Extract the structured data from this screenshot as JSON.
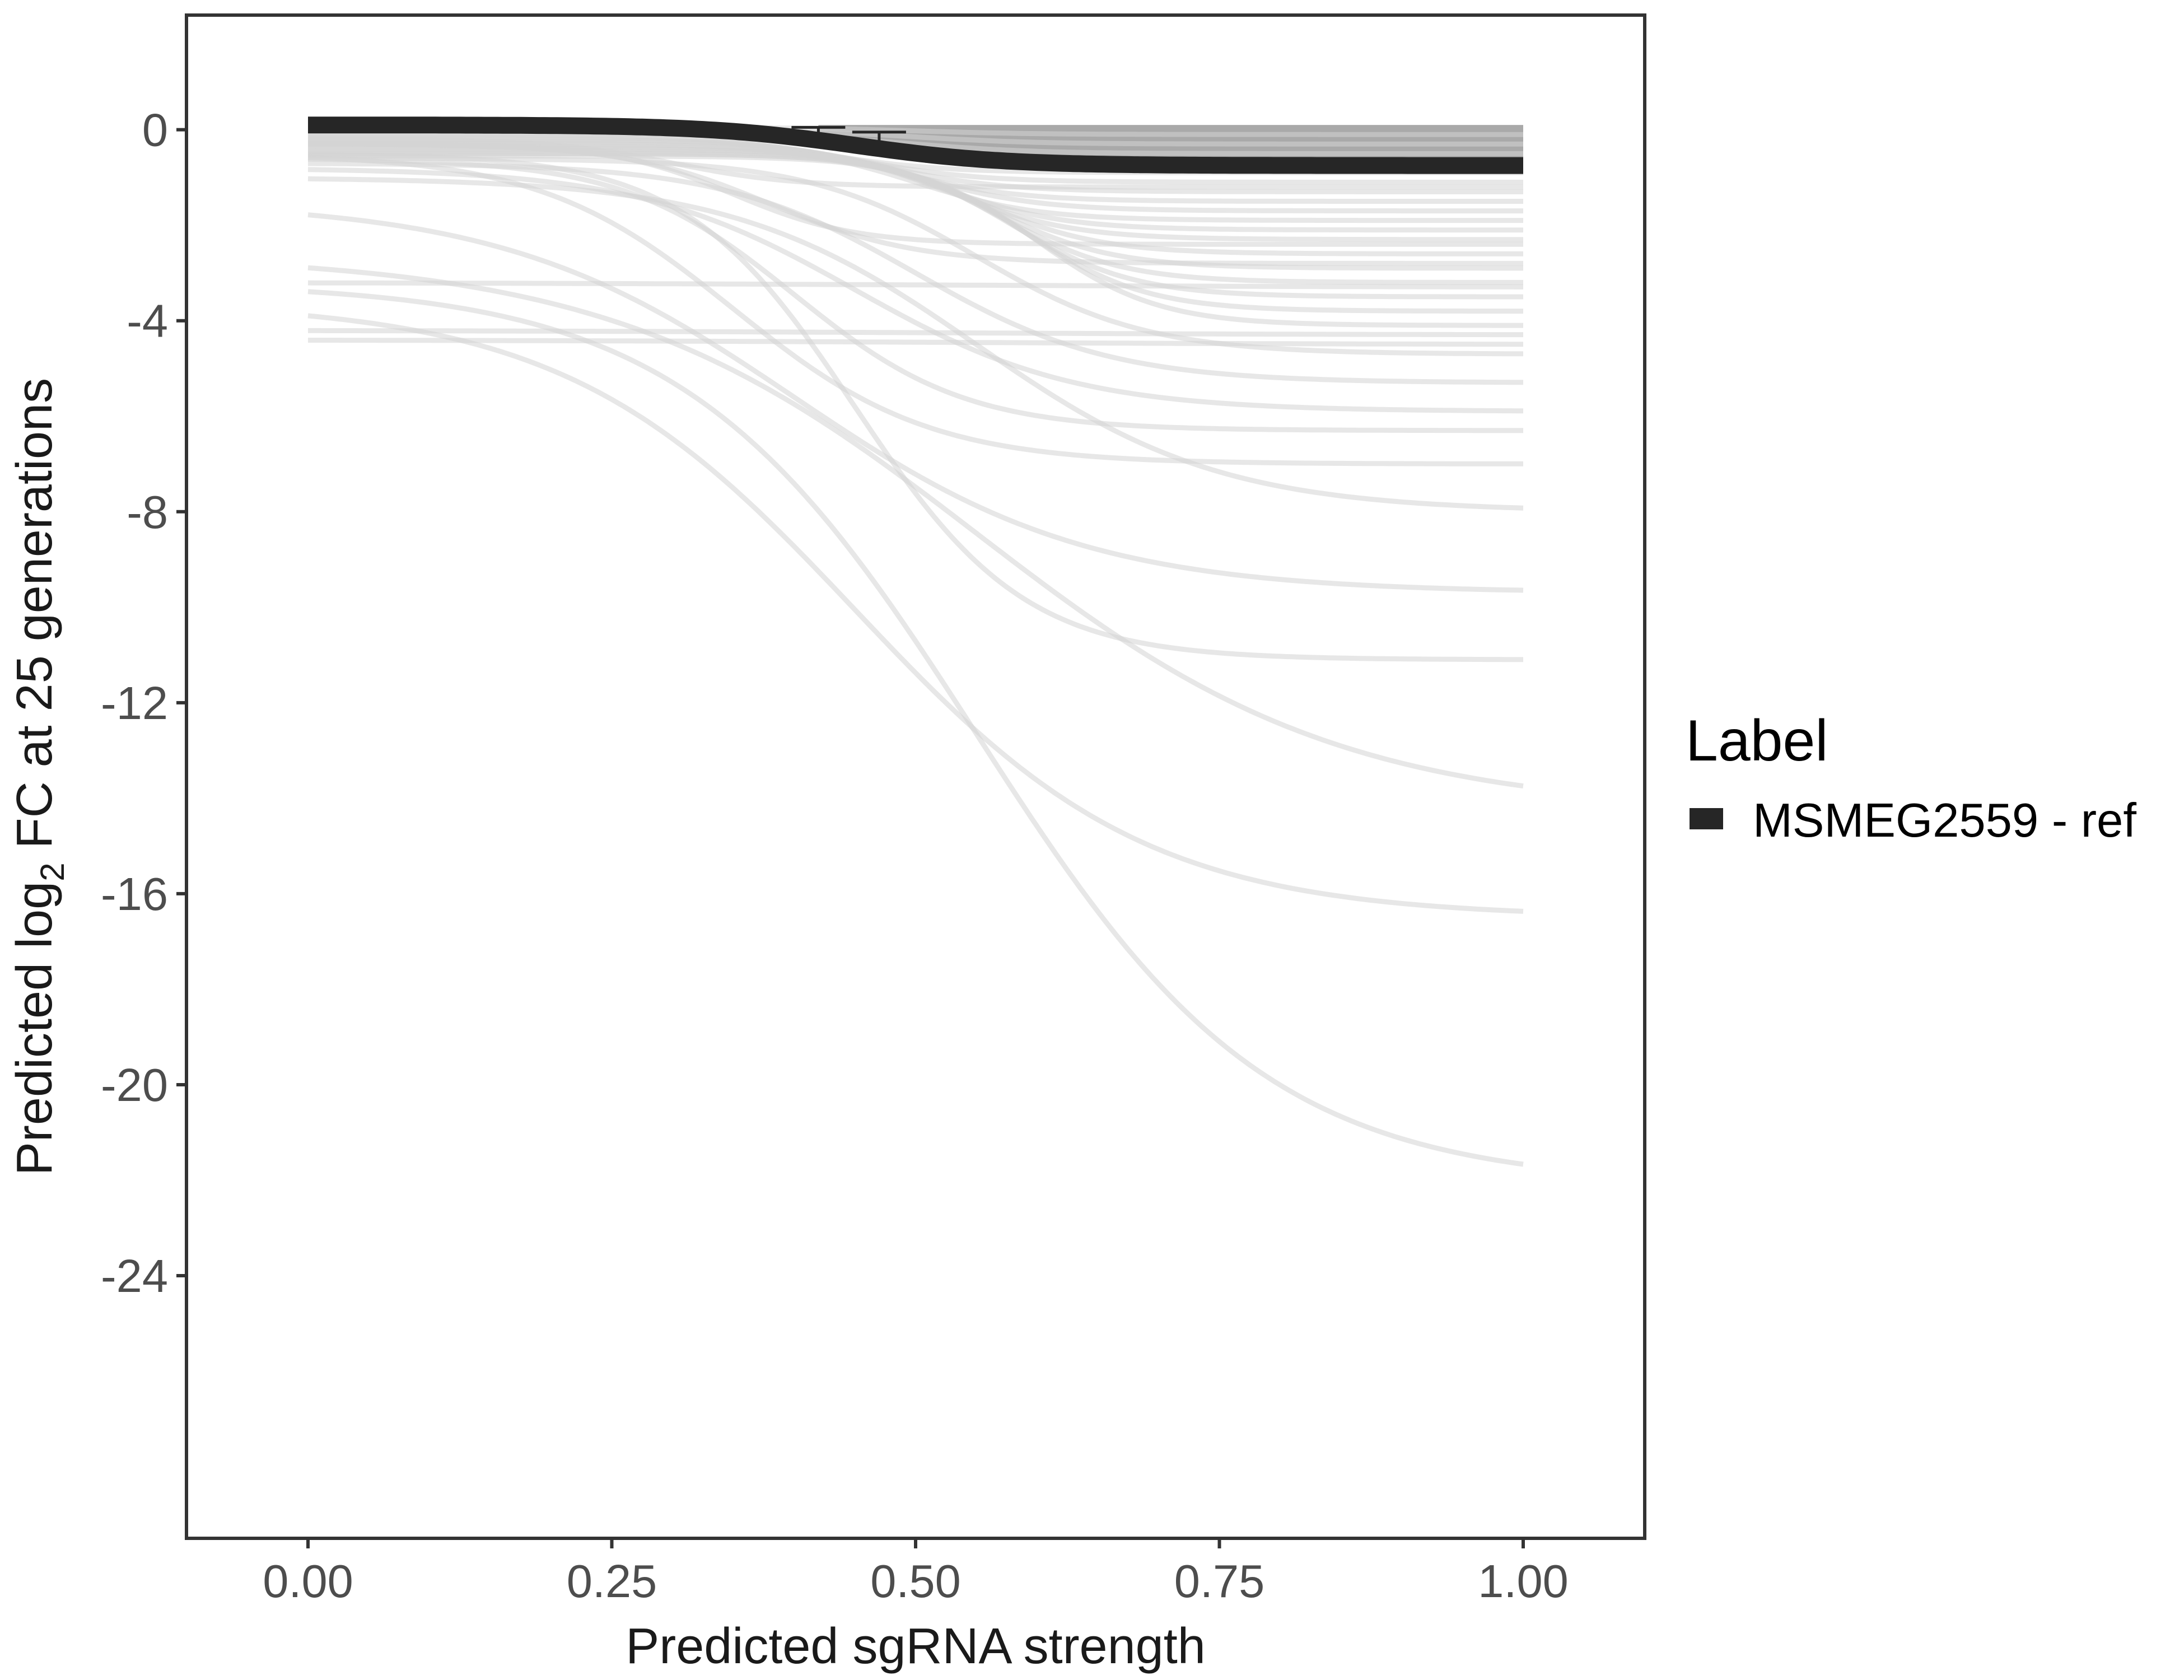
{
  "chart_data": {
    "type": "line",
    "title": "",
    "xlabel": "Predicted sgRNA strength",
    "ylabel": {
      "prefix": "Predicted  log",
      "subscript": "2",
      "suffix": " FC at 25 generations"
    },
    "xlim": [
      -0.1,
      1.1
    ],
    "ylim": [
      -29.5,
      2.4
    ],
    "x_ticks": [
      0,
      0.25,
      0.5,
      0.75,
      1
    ],
    "x_tick_labels": [
      "0.00",
      "0.25",
      "0.50",
      "0.75",
      "1.00"
    ],
    "y_ticks": [
      0,
      -4,
      -8,
      -12,
      -16,
      -20,
      -24
    ],
    "y_tick_labels": [
      "0",
      "-4",
      "-8",
      "-12",
      "-16",
      "-20",
      "-24"
    ],
    "grid": false,
    "legend": {
      "title": "Label",
      "position": "right",
      "entries": [
        "MSMEG2559 - ref"
      ]
    },
    "colors": {
      "highlight": "#262626",
      "background_lines": "#d4d4d4",
      "panel_border": "#333333"
    },
    "highlight_series": {
      "name": "MSMEG2559 - ref",
      "logistic": {
        "y0": 0.1,
        "yinf": -0.75,
        "mid": 0.45,
        "scale": 0.06
      },
      "error_points": [
        {
          "x": 0.42,
          "y": -0.28,
          "upper": 0.05
        },
        {
          "x": 0.47,
          "y": -0.35,
          "upper": -0.05
        }
      ]
    },
    "background_series": [
      {
        "y0": -0.1,
        "yinf": -0.9,
        "mid": 0.42,
        "scale": 0.05
      },
      {
        "y0": -0.15,
        "yinf": -1.1,
        "mid": 0.45,
        "scale": 0.05
      },
      {
        "y0": -0.2,
        "yinf": -1.3,
        "mid": 0.47,
        "scale": 0.05
      },
      {
        "y0": -0.2,
        "yinf": -1.5,
        "mid": 0.48,
        "scale": 0.05
      },
      {
        "y0": -0.25,
        "yinf": -1.7,
        "mid": 0.5,
        "scale": 0.05
      },
      {
        "y0": -0.3,
        "yinf": -1.9,
        "mid": 0.5,
        "scale": 0.05
      },
      {
        "y0": -0.3,
        "yinf": -2.1,
        "mid": 0.52,
        "scale": 0.05
      },
      {
        "y0": -0.35,
        "yinf": -2.3,
        "mid": 0.53,
        "scale": 0.05
      },
      {
        "y0": -0.4,
        "yinf": -2.6,
        "mid": 0.55,
        "scale": 0.05
      },
      {
        "y0": -0.4,
        "yinf": -2.9,
        "mid": 0.56,
        "scale": 0.05
      },
      {
        "y0": -0.45,
        "yinf": -3.2,
        "mid": 0.57,
        "scale": 0.05
      },
      {
        "y0": -0.5,
        "yinf": -3.5,
        "mid": 0.58,
        "scale": 0.05
      },
      {
        "y0": -0.5,
        "yinf": -3.8,
        "mid": 0.59,
        "scale": 0.05
      },
      {
        "y0": -0.55,
        "yinf": -4.1,
        "mid": 0.6,
        "scale": 0.05
      },
      {
        "y0": -0.6,
        "yinf": -4.7,
        "mid": 0.55,
        "scale": 0.07
      },
      {
        "y0": -0.7,
        "yinf": -5.3,
        "mid": 0.5,
        "scale": 0.08
      },
      {
        "y0": -0.8,
        "yinf": -5.9,
        "mid": 0.45,
        "scale": 0.09
      },
      {
        "y0": -0.6,
        "yinf": -6.3,
        "mid": 0.4,
        "scale": 0.07
      },
      {
        "y0": -0.5,
        "yinf": -7.0,
        "mid": 0.35,
        "scale": 0.08
      },
      {
        "y0": -1.0,
        "yinf": -8.0,
        "mid": 0.55,
        "scale": 0.1
      },
      {
        "y0": -1.5,
        "yinf": -9.7,
        "mid": 0.4,
        "scale": 0.12
      },
      {
        "y0": -0.5,
        "yinf": -11.1,
        "mid": 0.45,
        "scale": 0.07
      },
      {
        "y0": -2.6,
        "yinf": -14.3,
        "mid": 0.55,
        "scale": 0.15
      },
      {
        "y0": -3.6,
        "yinf": -16.5,
        "mid": 0.45,
        "scale": 0.12
      },
      {
        "y0": -3.2,
        "yinf": -22.1,
        "mid": 0.55,
        "scale": 0.12
      },
      {
        "y0": -3.2,
        "yinf": -3.3,
        "mid": 0.5,
        "scale": 0.2
      },
      {
        "y0": -4.2,
        "yinf": -4.3,
        "mid": 0.5,
        "scale": 0.2
      },
      {
        "y0": -4.4,
        "yinf": -4.5,
        "mid": 0.5,
        "scale": 0.2
      },
      {
        "y0": -0.2,
        "yinf": -1.2,
        "mid": 0.3,
        "scale": 0.05
      },
      {
        "y0": -0.3,
        "yinf": -2.4,
        "mid": 0.35,
        "scale": 0.05
      },
      {
        "y0": -0.3,
        "yinf": -2.8,
        "mid": 0.38,
        "scale": 0.06
      },
      {
        "y0": -0.1,
        "yinf": -0.5,
        "mid": 0.5,
        "scale": 0.05
      },
      {
        "y0": 0.0,
        "yinf": -0.3,
        "mid": 0.5,
        "scale": 0.05
      },
      {
        "y0": 0.05,
        "yinf": -0.1,
        "mid": 0.5,
        "scale": 0.05
      }
    ],
    "upper_band": {
      "x_from": 0.42,
      "x_to": 1.0,
      "top": 0.1
    }
  }
}
